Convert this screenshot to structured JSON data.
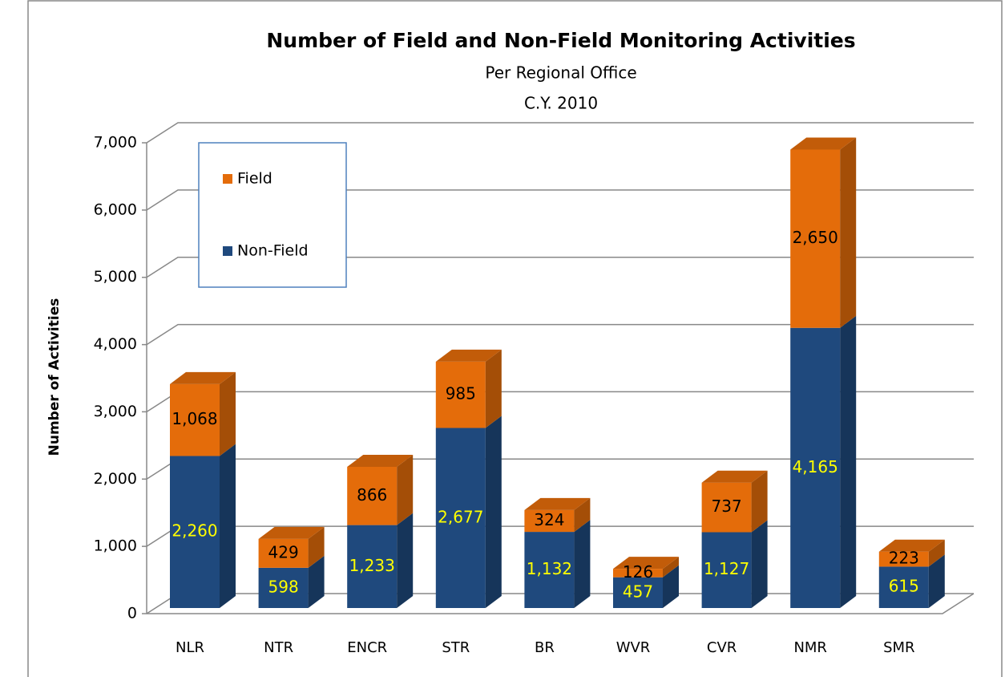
{
  "chart_data": {
    "type": "bar3d_stacked",
    "title": "Number of Field and Non-Field Monitoring Activities",
    "subtitle": [
      "Per Regional  Office",
      "C.Y. 2010"
    ],
    "y_label": "Number of Activities",
    "categories": [
      "NLR",
      "NTR",
      "ENCR",
      "STR",
      "BR",
      "WVR",
      "CVR",
      "NMR",
      "SMR"
    ],
    "series": [
      {
        "name": "Non-Field",
        "color": "#1f497d",
        "label_color": "#ffff00",
        "values": [
          2260,
          598,
          1233,
          2677,
          1132,
          457,
          1127,
          4165,
          615
        ],
        "value_labels": [
          "2,260",
          "598",
          "1,233",
          "2,677",
          "1,132",
          "457",
          "1,127",
          "4,165",
          "615"
        ]
      },
      {
        "name": "Field",
        "color": "#e46c0a",
        "label_color": "#000000",
        "values": [
          1068,
          429,
          866,
          985,
          324,
          126,
          737,
          2650,
          223
        ],
        "value_labels": [
          "1,068",
          "429",
          "866",
          "985",
          "324",
          "126",
          "737",
          "2,650",
          "223"
        ]
      }
    ],
    "ylim": [
      0,
      7000
    ],
    "yticks": [
      0,
      {
        "value": 1000,
        "label": "1,000"
      },
      {
        "value": 2000,
        "label": "2,000"
      },
      {
        "value": 3000,
        "label": "3,000"
      },
      {
        "value": 4000,
        "label": "4,000"
      },
      {
        "value": 5000,
        "label": "5,000"
      },
      {
        "value": 6000,
        "label": "6,000"
      },
      {
        "value": 7000,
        "label": "7,000"
      }
    ],
    "grid": true,
    "legend": "upper left"
  }
}
